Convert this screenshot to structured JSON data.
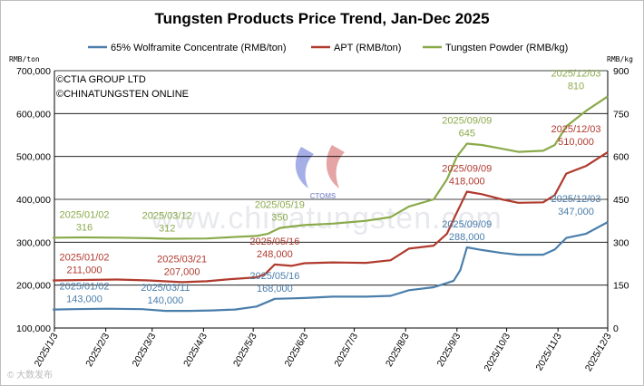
{
  "chart_data": {
    "type": "line",
    "title": "Tungsten Products Price Trend, Jan-Dec 2025",
    "y_left_unit": "RMB/ton",
    "y_right_unit": "RMB/kg",
    "y_left_lim": [
      100000,
      700000
    ],
    "y_left_ticks": [
      "100,000",
      "200,000",
      "300,000",
      "400,000",
      "500,000",
      "600,000",
      "700,000"
    ],
    "y_right_lim": [
      0,
      900
    ],
    "y_right_ticks": [
      "0",
      "150",
      "300",
      "450",
      "600",
      "750",
      "900"
    ],
    "x_lim": [
      "2025-01-03",
      "2025-12-03"
    ],
    "x_ticks": [
      "2025/1/3",
      "2025/2/3",
      "2025/3/3",
      "2025/4/3",
      "2025/5/3",
      "2025/6/3",
      "2025/7/3",
      "2025/8/3",
      "2025/9/3",
      "2025/10/3",
      "2025/11/3",
      "2025/12/3"
    ],
    "grid": "horizontal",
    "legend_position": "top",
    "series": [
      {
        "name": "65% Wolframite Concentrate (RMB/ton)",
        "color": "#4a7eab",
        "axis": "left",
        "points": [
          [
            "2025-01-02",
            143000
          ],
          [
            "2025-01-15",
            144000
          ],
          [
            "2025-02-05",
            145000
          ],
          [
            "2025-02-25",
            144000
          ],
          [
            "2025-03-11",
            140000
          ],
          [
            "2025-03-25",
            140000
          ],
          [
            "2025-04-08",
            141000
          ],
          [
            "2025-04-22",
            143000
          ],
          [
            "2025-05-05",
            150000
          ],
          [
            "2025-05-16",
            168000
          ],
          [
            "2025-05-26",
            169000
          ],
          [
            "2025-06-03",
            170000
          ],
          [
            "2025-06-20",
            173000
          ],
          [
            "2025-07-10",
            173000
          ],
          [
            "2025-07-25",
            175000
          ],
          [
            "2025-08-05",
            188000
          ],
          [
            "2025-08-20",
            195000
          ],
          [
            "2025-09-01",
            210000
          ],
          [
            "2025-09-05",
            235000
          ],
          [
            "2025-09-09",
            288000
          ],
          [
            "2025-09-18",
            282000
          ],
          [
            "2025-09-30",
            275000
          ],
          [
            "2025-10-10",
            271000
          ],
          [
            "2025-10-25",
            271000
          ],
          [
            "2025-11-01",
            283000
          ],
          [
            "2025-11-08",
            310000
          ],
          [
            "2025-11-20",
            320000
          ],
          [
            "2025-12-03",
            347000
          ]
        ]
      },
      {
        "name": "APT (RMB/ton)",
        "color": "#b03a2e",
        "axis": "left",
        "points": [
          [
            "2025-01-02",
            211000
          ],
          [
            "2025-01-20",
            212000
          ],
          [
            "2025-02-10",
            213000
          ],
          [
            "2025-03-01",
            211000
          ],
          [
            "2025-03-21",
            207000
          ],
          [
            "2025-04-05",
            209000
          ],
          [
            "2025-04-20",
            214000
          ],
          [
            "2025-05-05",
            218000
          ],
          [
            "2025-05-10",
            225000
          ],
          [
            "2025-05-16",
            248000
          ],
          [
            "2025-05-26",
            245000
          ],
          [
            "2025-06-03",
            251000
          ],
          [
            "2025-06-20",
            253000
          ],
          [
            "2025-07-10",
            252000
          ],
          [
            "2025-07-25",
            258000
          ],
          [
            "2025-08-05",
            285000
          ],
          [
            "2025-08-20",
            292000
          ],
          [
            "2025-08-28",
            320000
          ],
          [
            "2025-09-03",
            370000
          ],
          [
            "2025-09-09",
            418000
          ],
          [
            "2025-09-18",
            412000
          ],
          [
            "2025-09-30",
            400000
          ],
          [
            "2025-10-10",
            392000
          ],
          [
            "2025-10-25",
            393000
          ],
          [
            "2025-11-01",
            410000
          ],
          [
            "2025-11-08",
            460000
          ],
          [
            "2025-11-20",
            478000
          ],
          [
            "2025-12-03",
            510000
          ]
        ]
      },
      {
        "name": "Tungsten Powder (RMB/kg)",
        "color": "#8aaa4a",
        "axis": "right",
        "points": [
          [
            "2025-01-02",
            316
          ],
          [
            "2025-01-20",
            317
          ],
          [
            "2025-02-10",
            316
          ],
          [
            "2025-03-01",
            314
          ],
          [
            "2025-03-12",
            312
          ],
          [
            "2025-04-05",
            313
          ],
          [
            "2025-04-20",
            318
          ],
          [
            "2025-05-05",
            322
          ],
          [
            "2025-05-12",
            330
          ],
          [
            "2025-05-19",
            350
          ],
          [
            "2025-05-26",
            355
          ],
          [
            "2025-06-03",
            360
          ],
          [
            "2025-06-20",
            365
          ],
          [
            "2025-07-10",
            375
          ],
          [
            "2025-07-25",
            388
          ],
          [
            "2025-08-05",
            425
          ],
          [
            "2025-08-20",
            450
          ],
          [
            "2025-08-28",
            520
          ],
          [
            "2025-09-03",
            600
          ],
          [
            "2025-09-09",
            645
          ],
          [
            "2025-09-18",
            640
          ],
          [
            "2025-09-30",
            627
          ],
          [
            "2025-10-10",
            616
          ],
          [
            "2025-10-25",
            620
          ],
          [
            "2025-11-01",
            640
          ],
          [
            "2025-11-08",
            705
          ],
          [
            "2025-11-20",
            760
          ],
          [
            "2025-12-03",
            810
          ]
        ]
      }
    ],
    "annotations": [
      {
        "series": 0,
        "date": "2025/01/02",
        "value": "143,000"
      },
      {
        "series": 0,
        "date": "2025/03/11",
        "value": "140,000"
      },
      {
        "series": 0,
        "date": "2025/05/16",
        "value": "168,000"
      },
      {
        "series": 0,
        "date": "2025/09/09",
        "value": "288,000"
      },
      {
        "series": 0,
        "date": "2025/12/03",
        "value": "347,000"
      },
      {
        "series": 1,
        "date": "2025/01/02",
        "value": "211,000"
      },
      {
        "series": 1,
        "date": "2025/03/21",
        "value": "207,000"
      },
      {
        "series": 1,
        "date": "2025/05/16",
        "value": "248,000"
      },
      {
        "series": 1,
        "date": "2025/09/09",
        "value": "418,000"
      },
      {
        "series": 1,
        "date": "2025/12/03",
        "value": "510,000"
      },
      {
        "series": 2,
        "date": "2025/01/02",
        "value": "316"
      },
      {
        "series": 2,
        "date": "2025/03/12",
        "value": "312"
      },
      {
        "series": 2,
        "date": "2025/05/19",
        "value": "350"
      },
      {
        "series": 2,
        "date": "2025/09/09",
        "value": "645"
      },
      {
        "series": 2,
        "date": "2025/12/03",
        "value": "810"
      }
    ]
  },
  "copyright": [
    "©CTIA GROUP LTD",
    "©CHINATUNGSTEN ONLINE"
  ],
  "watermark": {
    "text": "www.chinatungsten.com",
    "logo_text": "CTOMS"
  },
  "corner_mark": "© 大数发布"
}
